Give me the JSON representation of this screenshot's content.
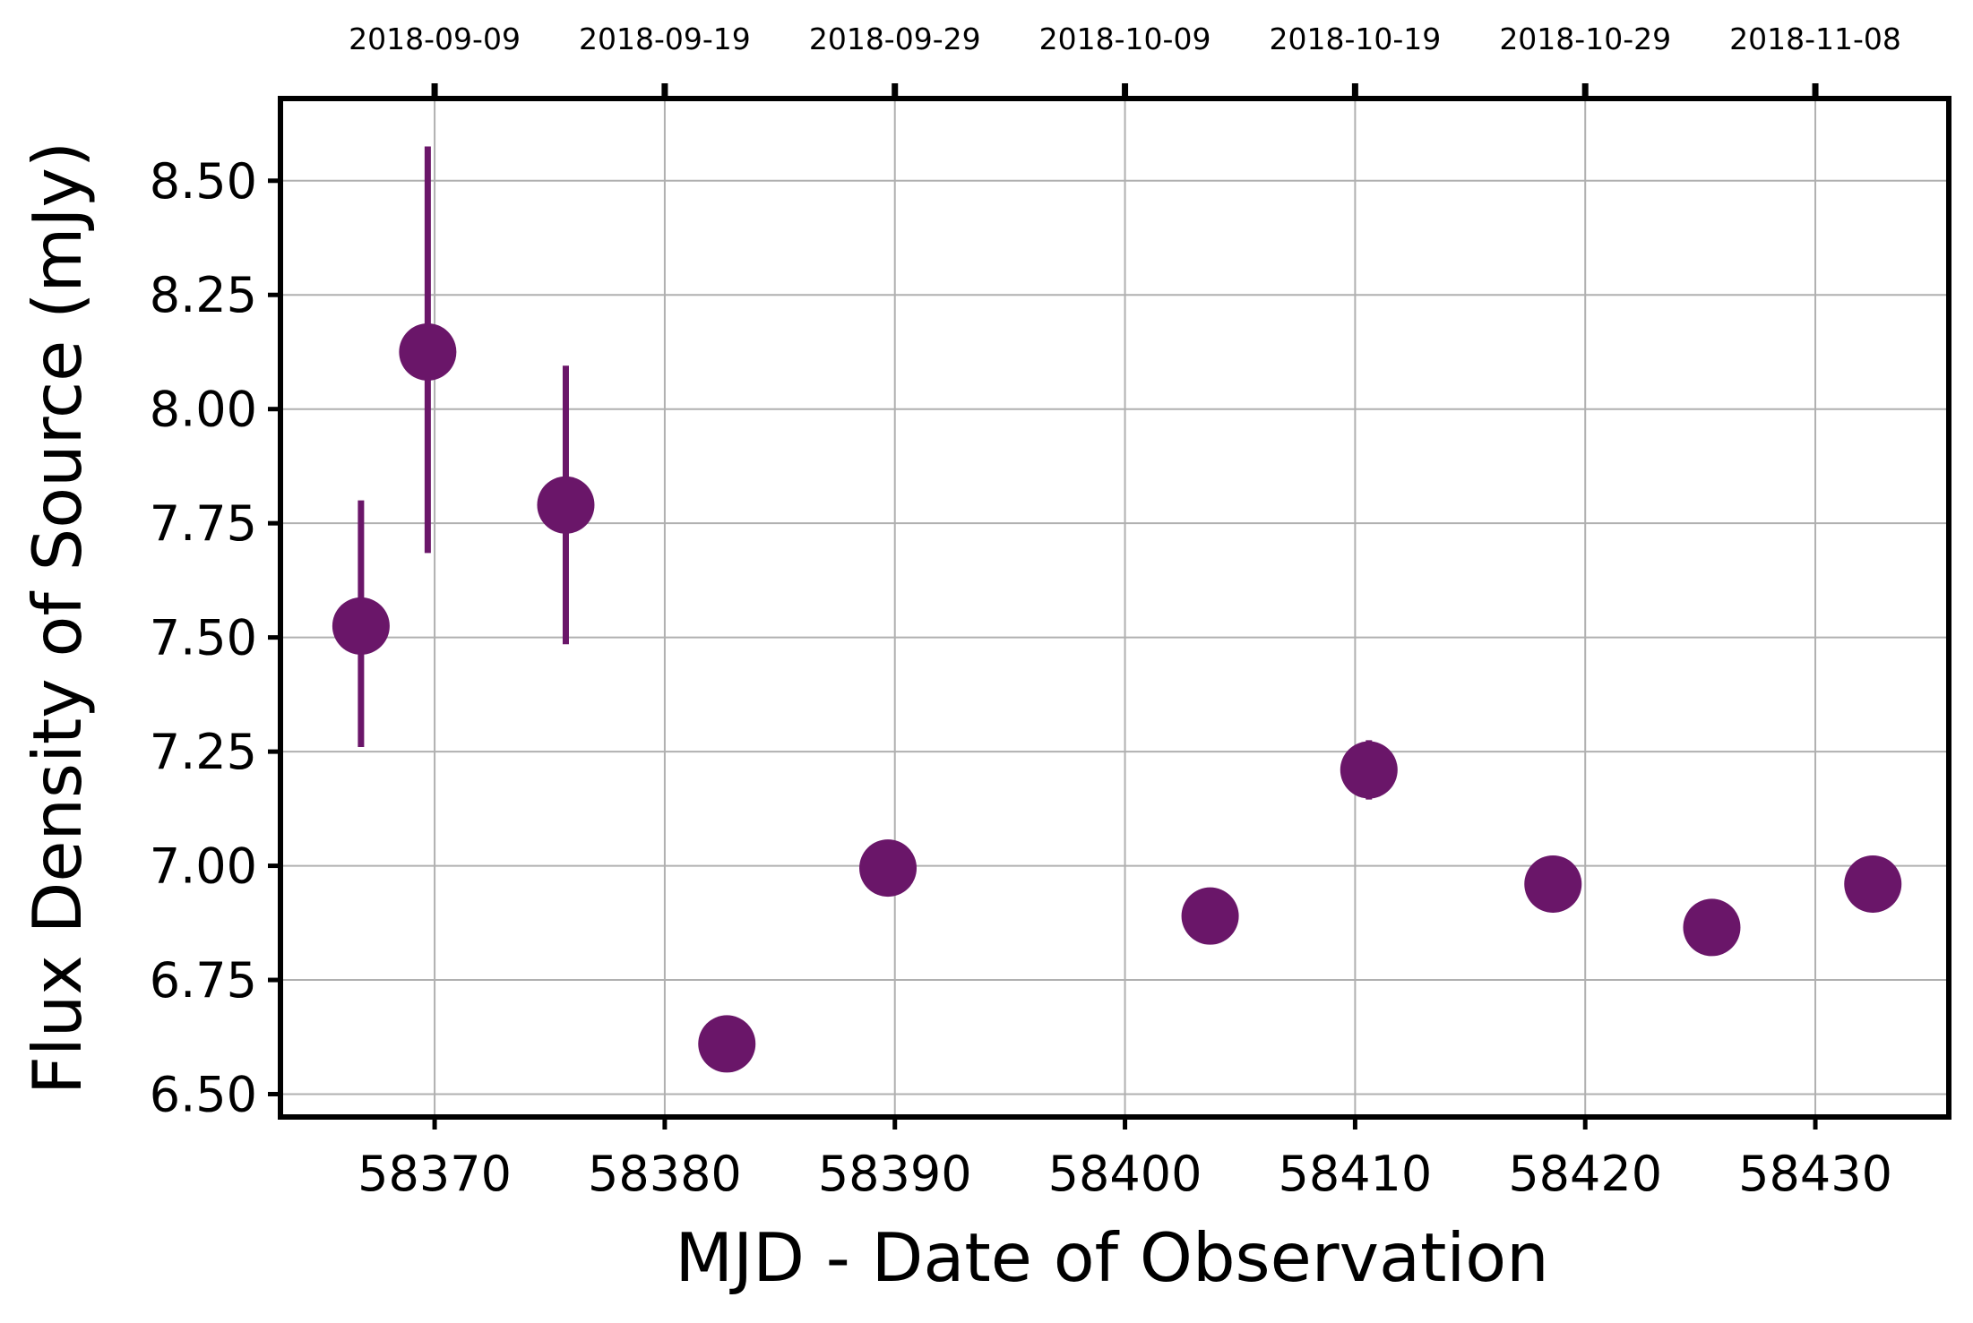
{
  "chart_data": {
    "type": "scatter",
    "title": "",
    "xlabel": "MJD - Date of Observation",
    "ylabel": "Flux Density of Source (mJy)",
    "xlim": [
      58363.3,
      58435.8
    ],
    "ylim": [
      6.45,
      8.68
    ],
    "grid": true,
    "x_ticks": [
      58370,
      58380,
      58390,
      58400,
      58410,
      58420,
      58430
    ],
    "y_ticks": [
      6.5,
      6.75,
      7.0,
      7.25,
      7.5,
      7.75,
      8.0,
      8.25,
      8.5
    ],
    "y_tick_labels": [
      "6.50",
      "6.75",
      "7.00",
      "7.25",
      "7.50",
      "7.75",
      "8.00",
      "8.25",
      "8.50"
    ],
    "top_axis": {
      "ticks": [
        58370,
        58380,
        58390,
        58400,
        58410,
        58420,
        58430
      ],
      "labels": [
        "2018-09-09",
        "2018-09-19",
        "2018-09-29",
        "2018-10-09",
        "2018-10-19",
        "2018-10-29",
        "2018-11-08"
      ]
    },
    "series": [
      {
        "color": "#6a1669",
        "points": [
          {
            "x": 58366.8,
            "y": 7.525,
            "yerr_low": 7.26,
            "yerr_high": 7.8
          },
          {
            "x": 58369.7,
            "y": 8.125,
            "yerr_low": 7.685,
            "yerr_high": 8.575
          },
          {
            "x": 58375.7,
            "y": 7.79,
            "yerr_low": 7.485,
            "yerr_high": 8.095
          },
          {
            "x": 58382.7,
            "y": 6.61
          },
          {
            "x": 58389.7,
            "y": 6.995
          },
          {
            "x": 58403.7,
            "y": 6.89
          },
          {
            "x": 58410.6,
            "y": 7.21,
            "yerr_low": 7.145,
            "yerr_high": 7.275
          },
          {
            "x": 58418.6,
            "y": 6.96
          },
          {
            "x": 58425.5,
            "y": 6.865
          },
          {
            "x": 58432.5,
            "y": 6.96
          }
        ]
      }
    ]
  }
}
